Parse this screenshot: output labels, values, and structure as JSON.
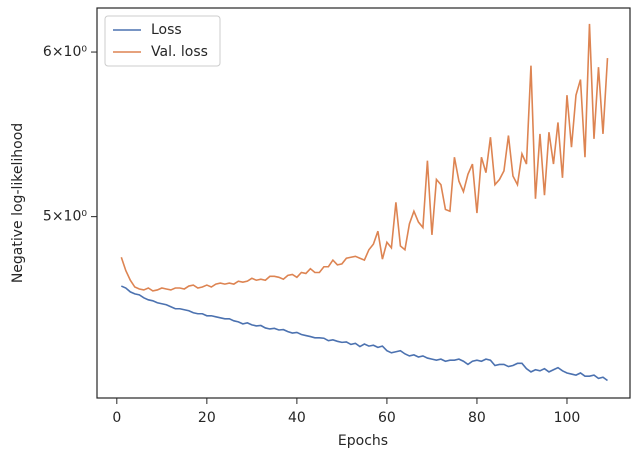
{
  "chart_data": {
    "type": "line",
    "xlabel": "Epochs",
    "ylabel": "Negative log-likelihood",
    "x": [
      1,
      2,
      3,
      4,
      5,
      6,
      7,
      8,
      9,
      10,
      11,
      12,
      13,
      14,
      15,
      16,
      17,
      18,
      19,
      20,
      21,
      22,
      23,
      24,
      25,
      26,
      27,
      28,
      29,
      30,
      31,
      32,
      33,
      34,
      35,
      36,
      37,
      38,
      39,
      40,
      41,
      42,
      43,
      44,
      45,
      46,
      47,
      48,
      49,
      50,
      51,
      52,
      53,
      54,
      55,
      56,
      57,
      58,
      59,
      60,
      61,
      62,
      63,
      64,
      65,
      66,
      67,
      68,
      69,
      70,
      71,
      72,
      73,
      74,
      75,
      76,
      77,
      78,
      79,
      80,
      81,
      82,
      83,
      84,
      85,
      86,
      87,
      88,
      89,
      90,
      91,
      92,
      93,
      94,
      95,
      96,
      97,
      98,
      99,
      100,
      101,
      102,
      103,
      104,
      105,
      106,
      107,
      108,
      109
    ],
    "series": [
      {
        "name": "Loss",
        "color": "#4c72b0",
        "values": [
          4.63,
          4.62,
          4.6,
          4.59,
          4.585,
          4.57,
          4.56,
          4.555,
          4.545,
          4.54,
          4.535,
          4.525,
          4.515,
          4.515,
          4.51,
          4.505,
          4.495,
          4.49,
          4.49,
          4.48,
          4.48,
          4.475,
          4.47,
          4.465,
          4.465,
          4.455,
          4.45,
          4.44,
          4.445,
          4.435,
          4.43,
          4.432,
          4.42,
          4.415,
          4.418,
          4.41,
          4.412,
          4.402,
          4.395,
          4.398,
          4.388,
          4.383,
          4.378,
          4.372,
          4.372,
          4.37,
          4.358,
          4.362,
          4.355,
          4.35,
          4.352,
          4.34,
          4.345,
          4.33,
          4.342,
          4.332,
          4.336,
          4.326,
          4.332,
          4.31,
          4.3,
          4.305,
          4.31,
          4.295,
          4.285,
          4.29,
          4.28,
          4.285,
          4.275,
          4.27,
          4.265,
          4.27,
          4.26,
          4.265,
          4.265,
          4.27,
          4.26,
          4.245,
          4.26,
          4.265,
          4.26,
          4.27,
          4.265,
          4.24,
          4.245,
          4.245,
          4.235,
          4.24,
          4.25,
          4.25,
          4.225,
          4.21,
          4.22,
          4.215,
          4.225,
          4.21,
          4.22,
          4.23,
          4.215,
          4.205,
          4.2,
          4.195,
          4.205,
          4.19,
          4.19,
          4.195,
          4.18,
          4.185,
          4.17
        ]
      },
      {
        "name": "Val. loss",
        "color": "#dd8452",
        "values": [
          4.78,
          4.71,
          4.66,
          4.625,
          4.615,
          4.61,
          4.62,
          4.605,
          4.61,
          4.62,
          4.615,
          4.61,
          4.62,
          4.62,
          4.615,
          4.63,
          4.635,
          4.62,
          4.625,
          4.635,
          4.625,
          4.64,
          4.645,
          4.64,
          4.645,
          4.64,
          4.655,
          4.65,
          4.655,
          4.67,
          4.66,
          4.665,
          4.66,
          4.68,
          4.68,
          4.675,
          4.665,
          4.685,
          4.69,
          4.675,
          4.7,
          4.695,
          4.72,
          4.7,
          4.7,
          4.73,
          4.73,
          4.765,
          4.74,
          4.745,
          4.775,
          4.78,
          4.785,
          4.775,
          4.765,
          4.82,
          4.85,
          4.92,
          4.77,
          4.86,
          4.83,
          5.08,
          4.84,
          4.82,
          4.96,
          5.03,
          4.97,
          4.94,
          5.32,
          4.9,
          5.21,
          5.18,
          5.04,
          5.03,
          5.34,
          5.2,
          5.14,
          5.24,
          5.3,
          5.02,
          5.34,
          5.25,
          5.46,
          5.18,
          5.21,
          5.26,
          5.47,
          5.23,
          5.18,
          5.36,
          5.3,
          5.91,
          5.1,
          5.48,
          5.12,
          5.49,
          5.3,
          5.55,
          5.22,
          5.72,
          5.4,
          5.72,
          5.82,
          5.34,
          6.19,
          5.45,
          5.9,
          5.48,
          5.96
        ]
      }
    ],
    "xlim": [
      -4.4,
      114.0
    ],
    "xticks": [
      0,
      20,
      40,
      60,
      80,
      100
    ],
    "ylim": [
      4.09,
      6.3
    ],
    "ylog": true,
    "yticks": [
      {
        "value": 5,
        "label": "5×10⁰"
      },
      {
        "value": 6,
        "label": "6×10⁰"
      }
    ],
    "legend": "upper left"
  }
}
